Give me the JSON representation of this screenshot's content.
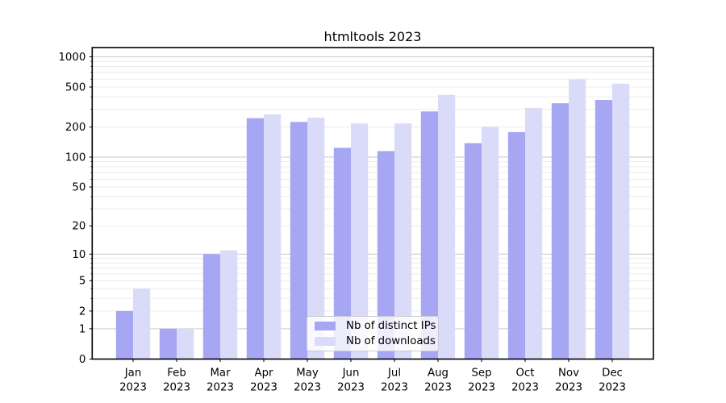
{
  "chart_data": {
    "type": "bar",
    "title": "htmltools 2023",
    "categories": [
      {
        "month": "Jan",
        "year": "2023"
      },
      {
        "month": "Feb",
        "year": "2023"
      },
      {
        "month": "Mar",
        "year": "2023"
      },
      {
        "month": "Apr",
        "year": "2023"
      },
      {
        "month": "May",
        "year": "2023"
      },
      {
        "month": "Jun",
        "year": "2023"
      },
      {
        "month": "Jul",
        "year": "2023"
      },
      {
        "month": "Aug",
        "year": "2023"
      },
      {
        "month": "Sep",
        "year": "2023"
      },
      {
        "month": "Oct",
        "year": "2023"
      },
      {
        "month": "Nov",
        "year": "2023"
      },
      {
        "month": "Dec",
        "year": "2023"
      }
    ],
    "series": [
      {
        "name": "Nb of distinct IPs",
        "color": "#a6a6f3",
        "values": [
          2,
          1,
          10,
          245,
          225,
          124,
          115,
          286,
          138,
          178,
          345,
          372
        ]
      },
      {
        "name": "Nb of downloads",
        "color": "#dadaf9",
        "values": [
          4,
          1,
          11,
          268,
          248,
          217,
          217,
          418,
          201,
          310,
          595,
          540
        ]
      }
    ],
    "yticks": [
      0,
      1,
      2,
      5,
      10,
      20,
      50,
      100,
      200,
      500,
      1000
    ],
    "yscale": "log1p",
    "ylim": [
      0,
      1235
    ],
    "grid": true,
    "legend_position": "lower center",
    "colors": {
      "grid_major": "#cccccc",
      "grid_minor": "#ececec",
      "axis": "#000000",
      "text": "#000000",
      "background": "#ffffff"
    }
  }
}
